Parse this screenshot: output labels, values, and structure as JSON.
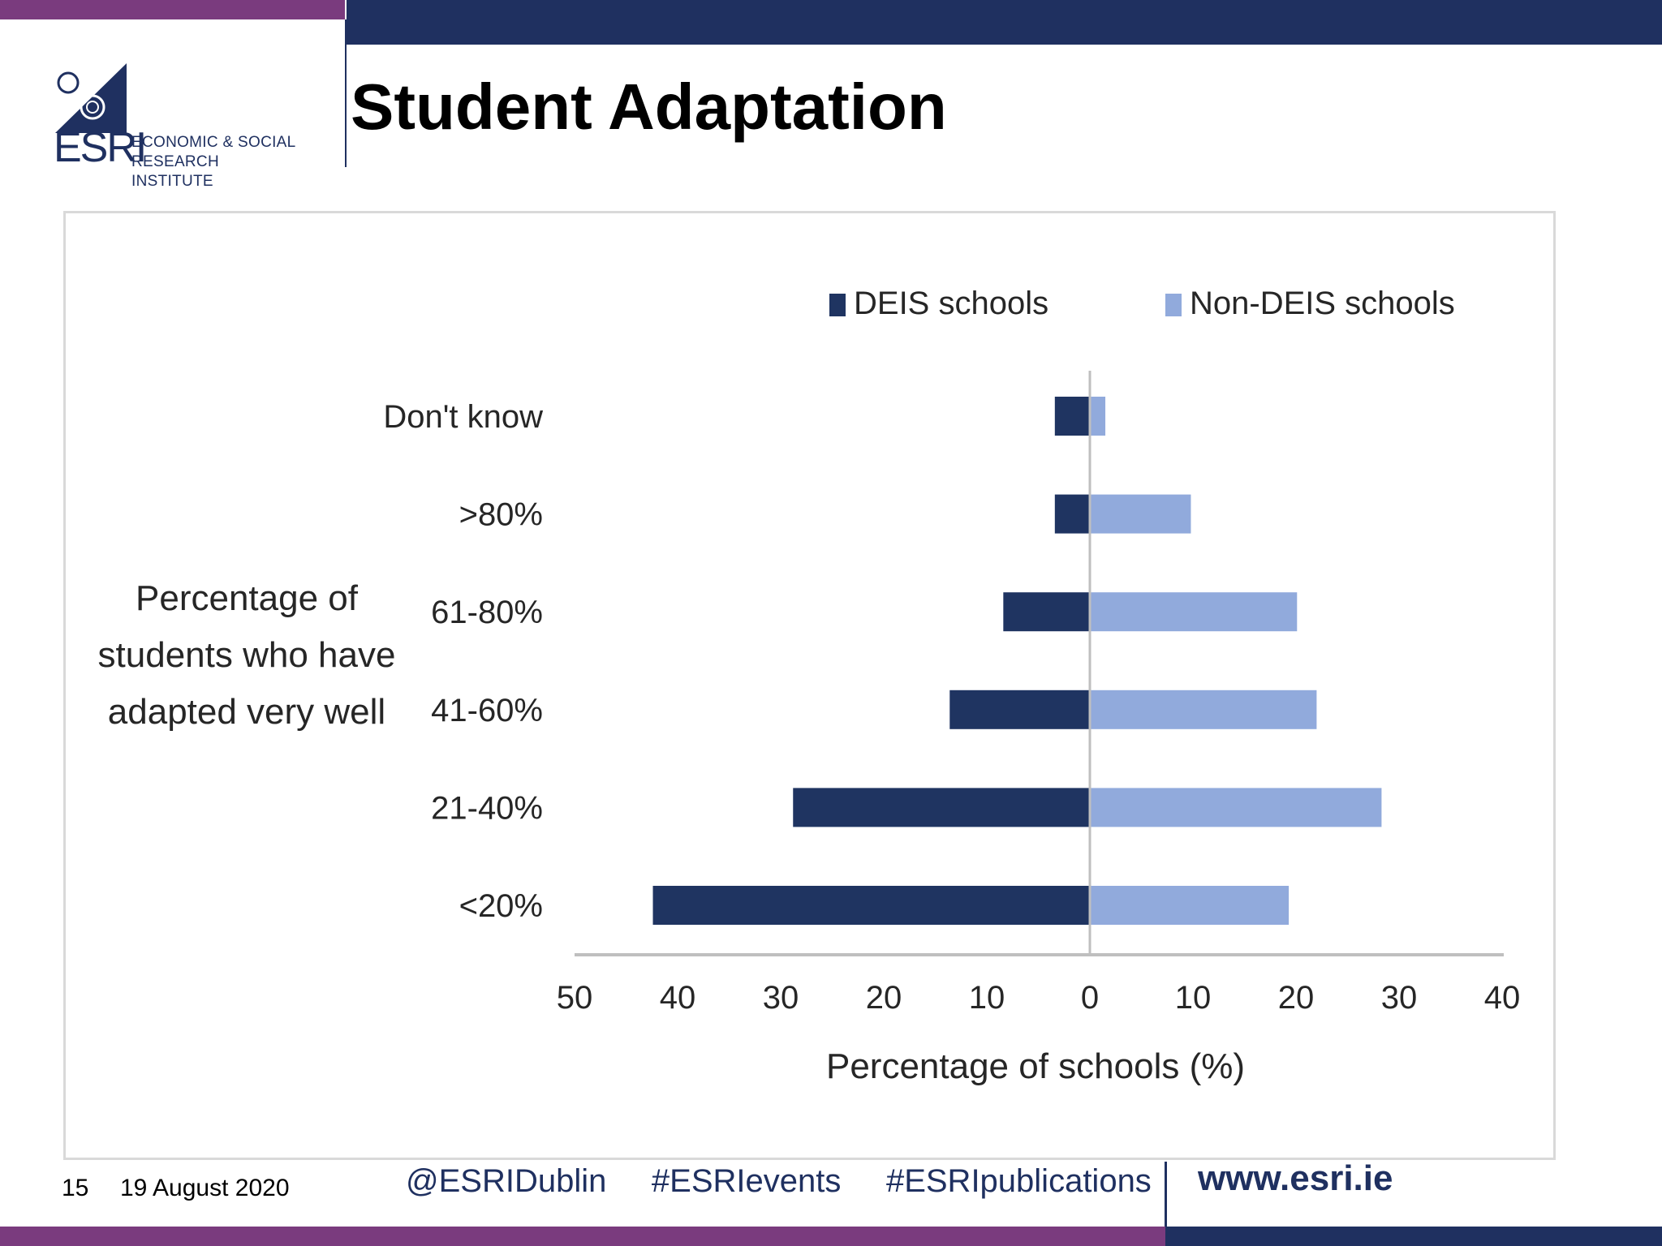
{
  "header": {
    "title": "Student Adaptation",
    "logo_text": "ESRI",
    "logo_subtitle_line1": "ECONOMIC & SOCIAL",
    "logo_subtitle_line2": "RESEARCH INSTITUTE"
  },
  "colors": {
    "navy": "#1f3060",
    "purple": "#7a3b7e",
    "deis": "#1f3461",
    "non_deis": "#91aadc",
    "axis": "#bfbfbf"
  },
  "footer": {
    "page_number": "15",
    "date": "19 August 2020",
    "hashtags": "@ESRIDublin     #ESRIevents     #ESRIpublications",
    "website": "www.esri.ie"
  },
  "chart_data": {
    "type": "bar",
    "orientation": "horizontal-diverging",
    "title": "",
    "categories": [
      "Don't know",
      ">80%",
      "61-80%",
      "41-60%",
      "21-40%",
      "<20%"
    ],
    "series": [
      {
        "name": "DEIS schools",
        "side": "left",
        "values": [
          3.4,
          3.4,
          8.4,
          13.6,
          28.8,
          42.4
        ]
      },
      {
        "name": "Non-DEIS schools",
        "side": "right",
        "values": [
          1.5,
          9.8,
          20.1,
          22.0,
          28.3,
          19.3
        ]
      }
    ],
    "xlabel": "Percentage of schools (%)",
    "ylabel": "Percentage of students who have adapted very well",
    "ylabel_lines": [
      "Percentage of",
      "students who have",
      "adapted very well"
    ],
    "x_ticks": [
      "50",
      "40",
      "30",
      "20",
      "10",
      "0",
      "10",
      "20",
      "30",
      "40"
    ],
    "xlim": [
      -50,
      40
    ],
    "legend": [
      "DEIS schools",
      "Non-DEIS schools"
    ],
    "legend_position": "top",
    "grid": false
  }
}
